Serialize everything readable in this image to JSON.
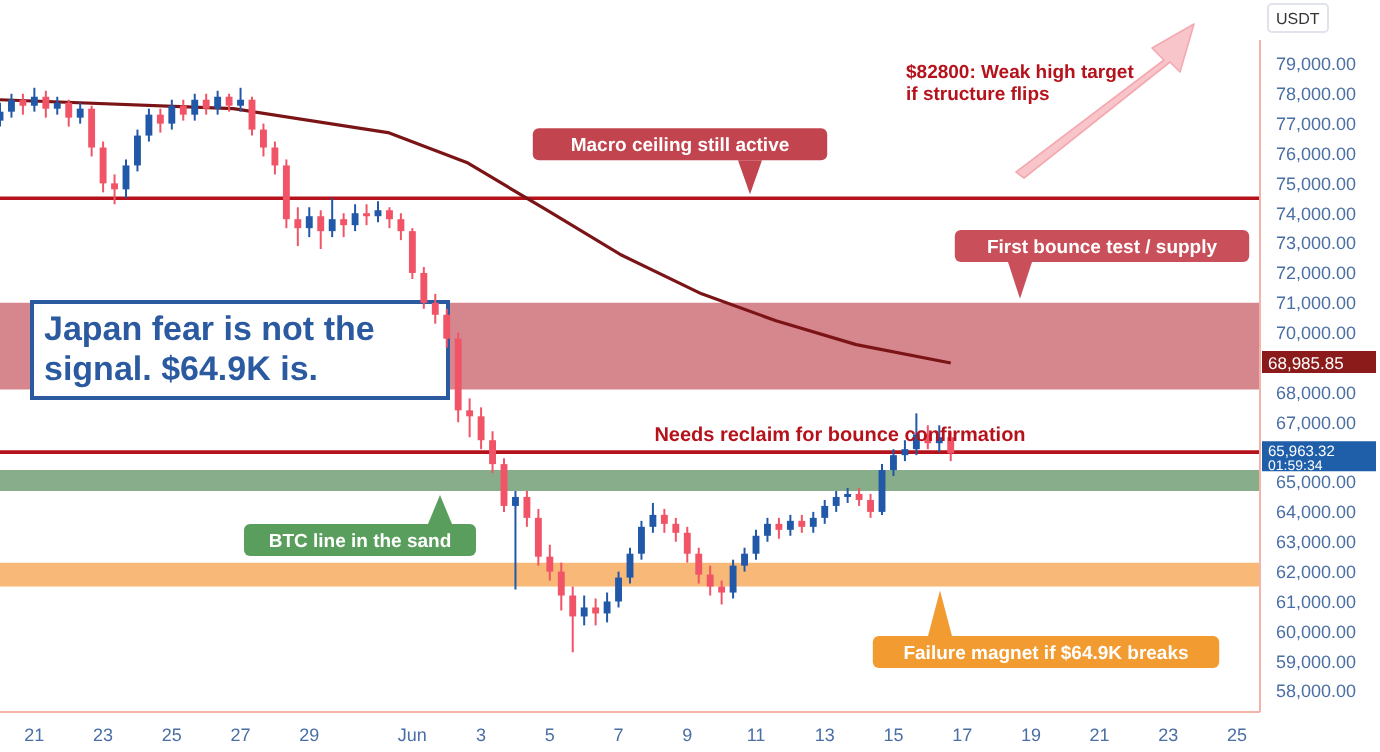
{
  "chart_data": {
    "type": "candlestick",
    "ylabel": "USDT",
    "xlim": [
      "--05-20T00:00",
      "--06-25T16:00"
    ],
    "ylim": [
      57300,
      79800
    ],
    "xticks": [
      {
        "value": "--05-21",
        "label": "21"
      },
      {
        "value": "--05-23",
        "label": "23"
      },
      {
        "value": "--05-25",
        "label": "25"
      },
      {
        "value": "--05-27",
        "label": "27"
      },
      {
        "value": "--05-29",
        "label": "29"
      },
      {
        "value": "--06-01",
        "label": "Jun"
      },
      {
        "value": "--06-03",
        "label": "3"
      },
      {
        "value": "--06-05",
        "label": "5"
      },
      {
        "value": "--06-07",
        "label": "7"
      },
      {
        "value": "--06-09",
        "label": "9"
      },
      {
        "value": "--06-11",
        "label": "11"
      },
      {
        "value": "--06-13",
        "label": "13"
      },
      {
        "value": "--06-15",
        "label": "15"
      },
      {
        "value": "--06-17",
        "label": "17"
      },
      {
        "value": "--06-19",
        "label": "19"
      },
      {
        "value": "--06-21",
        "label": "21"
      },
      {
        "value": "--06-23",
        "label": "23"
      },
      {
        "value": "--06-25",
        "label": "25"
      }
    ],
    "yticks": [
      {
        "value": 58000,
        "label": "58,000.00"
      },
      {
        "value": 59000,
        "label": "59,000.00"
      },
      {
        "value": 60000,
        "label": "60,000.00"
      },
      {
        "value": 61000,
        "label": "61,000.00"
      },
      {
        "value": 62000,
        "label": "62,000.00"
      },
      {
        "value": 63000,
        "label": "63,000.00"
      },
      {
        "value": 64000,
        "label": "64,000.00"
      },
      {
        "value": 65000,
        "label": "65,000.00"
      },
      {
        "value": 67000,
        "label": "67,000.00"
      },
      {
        "value": 68000,
        "label": "68,000.00"
      },
      {
        "value": 70000,
        "label": "70,000.00"
      },
      {
        "value": 71000,
        "label": "71,000.00"
      },
      {
        "value": 72000,
        "label": "72,000.00"
      },
      {
        "value": 73000,
        "label": "73,000.00"
      },
      {
        "value": 74000,
        "label": "74,000.00"
      },
      {
        "value": 75000,
        "label": "75,000.00"
      },
      {
        "value": 76000,
        "label": "76,000.00"
      },
      {
        "value": 77000,
        "label": "77,000.00"
      },
      {
        "value": 78000,
        "label": "78,000.00"
      },
      {
        "value": 79000,
        "label": "79,000.00"
      }
    ],
    "grid": false,
    "legend": false,
    "series": [
      {
        "x": [
          "--05-20T00:00",
          "--05-20T08:00",
          "--05-20T16:00",
          "--05-21T00:00",
          "--05-21T08:00",
          "--05-21T16:00",
          "--05-22T00:00",
          "--05-22T08:00",
          "--05-22T16:00",
          "--05-23T00:00",
          "--05-23T08:00",
          "--05-23T16:00",
          "--05-24T00:00",
          "--05-24T08:00",
          "--05-24T16:00",
          "--05-25T00:00",
          "--05-25T08:00",
          "--05-25T16:00",
          "--05-26T00:00",
          "--05-26T08:00",
          "--05-26T16:00",
          "--05-27T00:00",
          "--05-27T08:00",
          "--05-27T16:00",
          "--05-28T00:00",
          "--05-28T08:00",
          "--05-28T16:00",
          "--05-29T00:00",
          "--05-29T08:00",
          "--05-29T16:00",
          "--05-30T00:00",
          "--05-30T08:00",
          "--05-30T16:00",
          "--05-31T00:00",
          "--05-31T08:00",
          "--05-31T16:00",
          "--06-01T00:00",
          "--06-01T08:00",
          "--06-01T16:00",
          "--06-02T00:00",
          "--06-02T08:00",
          "--06-02T16:00",
          "--06-03T00:00",
          "--06-03T08:00",
          "--06-03T16:00",
          "--06-04T00:00",
          "--06-04T08:00",
          "--06-04T16:00",
          "--06-05T00:00",
          "--06-05T08:00",
          "--06-05T16:00",
          "--06-06T00:00",
          "--06-06T08:00",
          "--06-06T16:00",
          "--06-07T00:00",
          "--06-07T08:00",
          "--06-07T16:00",
          "--06-08T00:00",
          "--06-08T08:00",
          "--06-08T16:00",
          "--06-09T00:00",
          "--06-09T08:00",
          "--06-09T16:00",
          "--06-10T00:00",
          "--06-10T08:00",
          "--06-10T16:00",
          "--06-11T00:00",
          "--06-11T08:00",
          "--06-11T16:00",
          "--06-12T00:00",
          "--06-12T08:00",
          "--06-12T16:00",
          "--06-13T00:00",
          "--06-13T08:00",
          "--06-13T16:00",
          "--06-14T00:00",
          "--06-14T08:00",
          "--06-14T16:00",
          "--06-15T00:00",
          "--06-15T08:00",
          "--06-15T16:00",
          "--06-16T00:00",
          "--06-16T08:00",
          "--06-16T16:00"
        ],
        "ohlc": [
          [
            77100,
            77700,
            76900,
            77400
          ],
          [
            77400,
            78000,
            77200,
            77800
          ],
          [
            77800,
            78000,
            77300,
            77600
          ],
          [
            77600,
            78200,
            77400,
            77900
          ],
          [
            77900,
            78100,
            77200,
            77500
          ],
          [
            77500,
            77900,
            77300,
            77700
          ],
          [
            77700,
            77800,
            76900,
            77200
          ],
          [
            77200,
            77700,
            77000,
            77500
          ],
          [
            77500,
            77600,
            75900,
            76200
          ],
          [
            76200,
            76400,
            74700,
            75000
          ],
          [
            75000,
            75300,
            74300,
            74800
          ],
          [
            74800,
            75800,
            74500,
            75600
          ],
          [
            75600,
            76800,
            75400,
            76600
          ],
          [
            76600,
            77500,
            76400,
            77300
          ],
          [
            77300,
            77500,
            76700,
            77000
          ],
          [
            77000,
            77800,
            76800,
            77600
          ],
          [
            77600,
            77800,
            77100,
            77300
          ],
          [
            77300,
            78000,
            77100,
            77800
          ],
          [
            77800,
            78000,
            77300,
            77500
          ],
          [
            77500,
            78100,
            77300,
            77900
          ],
          [
            77900,
            78000,
            77400,
            77600
          ],
          [
            77600,
            78200,
            77400,
            77800
          ],
          [
            77800,
            77900,
            76600,
            76800
          ],
          [
            76800,
            77000,
            75900,
            76200
          ],
          [
            76200,
            76400,
            75300,
            75600
          ],
          [
            75600,
            75800,
            73500,
            73800
          ],
          [
            73800,
            74200,
            72900,
            73500
          ],
          [
            73500,
            74200,
            73200,
            73900
          ],
          [
            73900,
            74100,
            72800,
            73400
          ],
          [
            73400,
            74500,
            73200,
            73800
          ],
          [
            73800,
            74000,
            73200,
            73600
          ],
          [
            73600,
            74300,
            73400,
            74000
          ],
          [
            74000,
            74300,
            73600,
            73900
          ],
          [
            73900,
            74400,
            73700,
            74100
          ],
          [
            74100,
            74200,
            73500,
            73800
          ],
          [
            73800,
            74000,
            73100,
            73400
          ],
          [
            73400,
            73500,
            71800,
            72000
          ],
          [
            72000,
            72200,
            70800,
            71000
          ],
          [
            71000,
            71300,
            70300,
            70600
          ],
          [
            70600,
            70800,
            69500,
            69800
          ],
          [
            69800,
            70000,
            67000,
            67400
          ],
          [
            67400,
            67800,
            66500,
            67200
          ],
          [
            67200,
            67500,
            66100,
            66400
          ],
          [
            66400,
            66700,
            65300,
            65600
          ],
          [
            65600,
            65800,
            64000,
            64200
          ],
          [
            64200,
            64700,
            61400,
            64500
          ],
          [
            64500,
            64700,
            63500,
            63800
          ],
          [
            63800,
            64100,
            62200,
            62500
          ],
          [
            62500,
            62900,
            61700,
            62000
          ],
          [
            62000,
            62300,
            60700,
            61200
          ],
          [
            61200,
            61500,
            59300,
            60500
          ],
          [
            60500,
            61200,
            60200,
            60800
          ],
          [
            60800,
            61100,
            60200,
            60600
          ],
          [
            60600,
            61300,
            60300,
            61000
          ],
          [
            61000,
            62000,
            60800,
            61800
          ],
          [
            61800,
            62800,
            61600,
            62600
          ],
          [
            62600,
            63700,
            62400,
            63500
          ],
          [
            63500,
            64300,
            63300,
            63900
          ],
          [
            63900,
            64100,
            63300,
            63600
          ],
          [
            63600,
            63800,
            63000,
            63300
          ],
          [
            63300,
            63500,
            62300,
            62600
          ],
          [
            62600,
            62800,
            61600,
            61900
          ],
          [
            61900,
            62200,
            61200,
            61500
          ],
          [
            61500,
            61700,
            60900,
            61300
          ],
          [
            61300,
            62400,
            61100,
            62200
          ],
          [
            62200,
            62800,
            62000,
            62600
          ],
          [
            62600,
            63400,
            62400,
            63200
          ],
          [
            63200,
            63800,
            63000,
            63600
          ],
          [
            63600,
            63800,
            63100,
            63400
          ],
          [
            63400,
            63900,
            63200,
            63700
          ],
          [
            63700,
            63900,
            63300,
            63500
          ],
          [
            63500,
            64000,
            63300,
            63800
          ],
          [
            63800,
            64400,
            63600,
            64200
          ],
          [
            64200,
            64700,
            64000,
            64500
          ],
          [
            64500,
            64800,
            64300,
            64600
          ],
          [
            64600,
            64800,
            64200,
            64400
          ],
          [
            64400,
            64600,
            63800,
            64000
          ],
          [
            64000,
            65600,
            63900,
            65400
          ],
          [
            65400,
            66100,
            65200,
            65900
          ],
          [
            65900,
            66400,
            65700,
            66100
          ],
          [
            66100,
            67300,
            65900,
            66600
          ],
          [
            66600,
            66900,
            66100,
            66300
          ],
          [
            66300,
            66900,
            66000,
            66500
          ],
          [
            66500,
            66700,
            65700,
            65963.32
          ]
        ],
        "colors": [
          "#2158a8",
          "#2158a8",
          "#f05466",
          "#2158a8",
          "#f05466",
          "#2158a8",
          "#f05466",
          "#2158a8",
          "#f05466",
          "#f05466",
          "#f05466",
          "#2158a8",
          "#2158a8",
          "#2158a8",
          "#f05466",
          "#2158a8",
          "#f05466",
          "#2158a8",
          "#f05466",
          "#2158a8",
          "#f05466",
          "#2158a8",
          "#f05466",
          "#f05466",
          "#f05466",
          "#f05466",
          "#f05466",
          "#2158a8",
          "#f05466",
          "#2158a8",
          "#f05466",
          "#2158a8",
          "#f05466",
          "#2158a8",
          "#f05466",
          "#f05466",
          "#f05466",
          "#f05466",
          "#f05466",
          "#f05466",
          "#f05466",
          "#f05466",
          "#f05466",
          "#f05466",
          "#f05466",
          "#2158a8",
          "#f05466",
          "#f05466",
          "#f05466",
          "#f05466",
          "#f05466",
          "#2158a8",
          "#f05466",
          "#2158a8",
          "#2158a8",
          "#2158a8",
          "#2158a8",
          "#2158a8",
          "#f05466",
          "#f05466",
          "#f05466",
          "#f05466",
          "#f05466",
          "#f05466",
          "#2158a8",
          "#2158a8",
          "#2158a8",
          "#2158a8",
          "#f05466",
          "#2158a8",
          "#f05466",
          "#2158a8",
          "#2158a8",
          "#2158a8",
          "#2158a8",
          "#f05466",
          "#f05466",
          "#2158a8",
          "#2158a8",
          "#2158a8",
          "#2158a8",
          "#f05466",
          "#2158a8",
          "#f05466"
        ],
        "value_labels": [
          null,
          null,
          null,
          null,
          null,
          null,
          null,
          null,
          null,
          null,
          null,
          null,
          null,
          null,
          null,
          null,
          null,
          null,
          null,
          null,
          null,
          null,
          null,
          null,
          null,
          null,
          null,
          null,
          null,
          null,
          null,
          null,
          null,
          null,
          null,
          null,
          null,
          null,
          null,
          null,
          null,
          null,
          null,
          null,
          null,
          null,
          null,
          null,
          null,
          null,
          null,
          null,
          null,
          null,
          null,
          null,
          null,
          null,
          null,
          null,
          null,
          null,
          null,
          null,
          null,
          null,
          null,
          null,
          null,
          null,
          null,
          null,
          null,
          null,
          null,
          null,
          null,
          null,
          null,
          null,
          null,
          null,
          null,
          "65,963.32"
        ]
      },
      {
        "type": "line",
        "color": "#7b1416",
        "x": [
          "--05-20T00:00",
          "--05-26T19:00",
          "--05-31T07:00",
          "--06-02T14:00",
          "--06-04T22:00",
          "--06-07T02:00",
          "--06-09T10:00",
          "--06-11T14:00",
          "--06-13T22:00",
          "--06-16T16:00"
        ],
        "values": [
          77800,
          77500,
          76700,
          75700,
          74100,
          72600,
          71300,
          70400,
          69600,
          68985.85
        ],
        "line_style": "solid"
      }
    ],
    "ref_lines": [
      {
        "axis": "y",
        "value": 74500,
        "label": "Macro ceiling still active",
        "color": "#b5121b"
      },
      {
        "axis": "y",
        "value": 66000,
        "label": "Needs reclaim for bounce confirmation",
        "color": "#b5121b"
      }
    ],
    "bands": [
      {
        "axis": "y",
        "from": 68100,
        "to": 71000,
        "label": "First bounce test / supply",
        "color": "#d6878d"
      },
      {
        "axis": "y",
        "from": 64700,
        "to": 65400,
        "label": "BTC line in the sand",
        "color": "#88ad8b"
      },
      {
        "axis": "y",
        "from": 61500,
        "to": 62300,
        "label": "Failure magnet if $64.9K breaks",
        "color": "#f8b877"
      }
    ],
    "annotations": [
      "01:59:34",
      "Japan fear is not the signal. $64.9K is.",
      "$82800: Weak high target if structure flips",
      "68,985.85"
    ]
  }
}
